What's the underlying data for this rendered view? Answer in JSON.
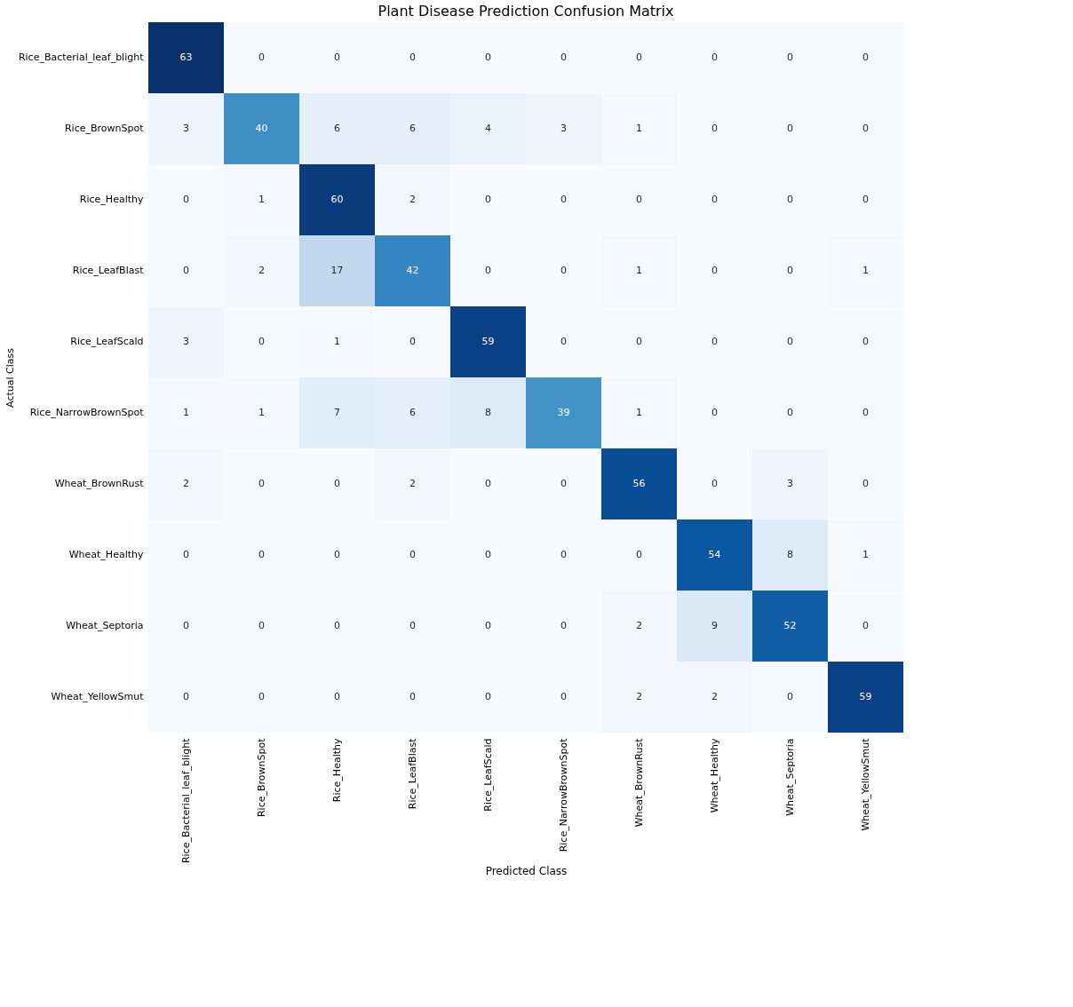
{
  "chart_data": {
    "type": "heatmap",
    "title": "Plant Disease Prediction Confusion Matrix",
    "xlabel": "Predicted Class",
    "ylabel": "Actual Class",
    "categories": [
      "Rice_Bacterial_leaf_blight",
      "Rice_BrownSpot",
      "Rice_Healthy",
      "Rice_LeafBlast",
      "Rice_LeafScald",
      "Rice_NarrowBrownSpot",
      "Wheat_BrownRust",
      "Wheat_Healthy",
      "Wheat_Septoria",
      "Wheat_YellowSmut"
    ],
    "y_categories": [
      "Rice_Bacterial_leaf_blight",
      "Rice_BrownSpot",
      "Rice_Healthy",
      "Rice_LeafBlast",
      "Rice_LeafScald",
      "Rice_NarrowBrownSpot",
      "Wheat_BrownRust",
      "Wheat_Healthy",
      "Wheat_Septoria",
      "Wheat_YellowSmut"
    ],
    "cells": [
      [
        63,
        0,
        0,
        0,
        0,
        0,
        0,
        0,
        0,
        0
      ],
      [
        3,
        40,
        6,
        6,
        4,
        3,
        1,
        0,
        0,
        0
      ],
      [
        0,
        1,
        60,
        2,
        0,
        0,
        0,
        0,
        0,
        0
      ],
      [
        0,
        2,
        17,
        42,
        0,
        0,
        1,
        0,
        0,
        1
      ],
      [
        3,
        0,
        1,
        0,
        59,
        0,
        0,
        0,
        0,
        0
      ],
      [
        1,
        1,
        7,
        6,
        8,
        39,
        1,
        0,
        0,
        0
      ],
      [
        2,
        0,
        0,
        2,
        0,
        0,
        56,
        0,
        3,
        0
      ],
      [
        0,
        0,
        0,
        0,
        0,
        0,
        0,
        54,
        8,
        1
      ],
      [
        0,
        0,
        0,
        0,
        0,
        0,
        2,
        9,
        52,
        0
      ],
      [
        0,
        0,
        0,
        0,
        0,
        0,
        2,
        2,
        0,
        59
      ]
    ],
    "data_labels": true
  }
}
